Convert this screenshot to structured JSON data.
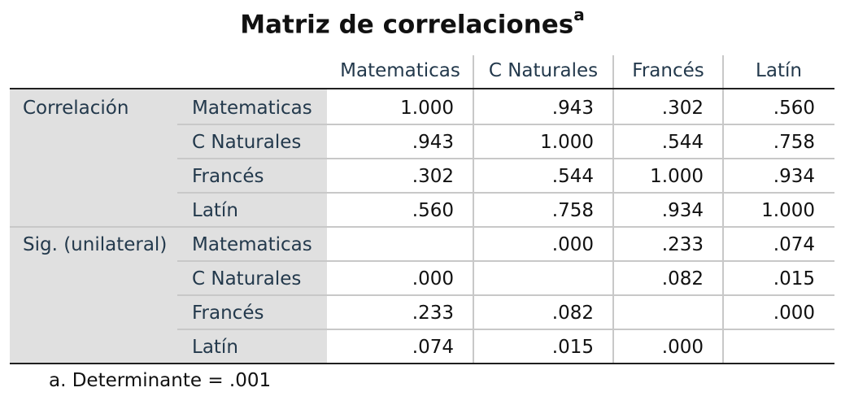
{
  "title": {
    "text": "Matriz de correlaciones",
    "superscript": "a"
  },
  "columns": [
    "Matematicas",
    "C Naturales",
    "Francés",
    "Latín"
  ],
  "groups": [
    {
      "label": "Correlación",
      "rows": [
        {
          "label": "Matematicas",
          "values": [
            "1.000",
            ".943",
            ".302",
            ".560"
          ]
        },
        {
          "label": "C Naturales",
          "values": [
            ".943",
            "1.000",
            ".544",
            ".758"
          ]
        },
        {
          "label": "Francés",
          "values": [
            ".302",
            ".544",
            "1.000",
            ".934"
          ]
        },
        {
          "label": "Latín",
          "values": [
            ".560",
            ".758",
            ".934",
            "1.000"
          ]
        }
      ]
    },
    {
      "label": "Sig. (unilateral)",
      "rows": [
        {
          "label": "Matematicas",
          "values": [
            "",
            ".000",
            ".233",
            ".074"
          ]
        },
        {
          "label": "C Naturales",
          "values": [
            ".000",
            "",
            ".082",
            ".015"
          ]
        },
        {
          "label": "Francés",
          "values": [
            ".233",
            ".082",
            "",
            ".000"
          ]
        },
        {
          "label": "Latín",
          "values": [
            ".074",
            ".015",
            ".000",
            ""
          ]
        }
      ]
    }
  ],
  "footnote": "a. Determinante = .001"
}
